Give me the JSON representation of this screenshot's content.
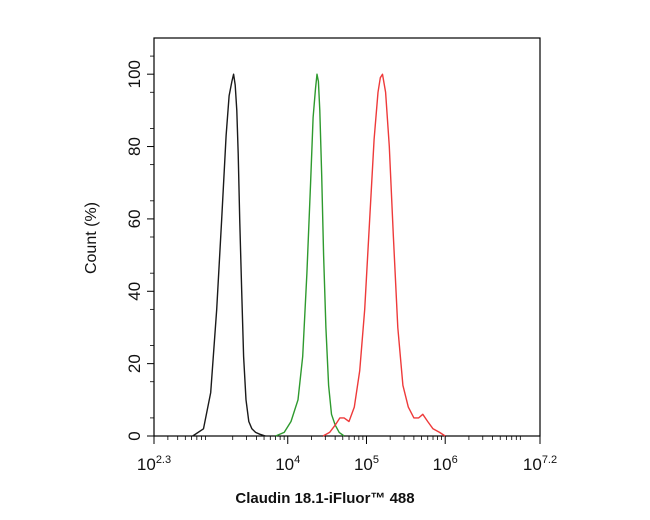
{
  "chart_data": {
    "type": "line",
    "title": "",
    "xlabel": "Claudin 18.1-iFluor™ 488",
    "ylabel": "Count (%)",
    "xscale": "log",
    "xlim": [
      200,
      16000000
    ],
    "ylim": [
      0,
      110
    ],
    "grid": false,
    "legend": "none",
    "x_ticks": [
      {
        "base": "10",
        "exp": "2.3",
        "value": 200
      },
      {
        "base": "10",
        "exp": "4",
        "value": 10000
      },
      {
        "base": "10",
        "exp": "5",
        "value": 100000
      },
      {
        "base": "10",
        "exp": "6",
        "value": 1000000
      },
      {
        "base": "10",
        "exp": "7.2",
        "value": 16000000
      }
    ],
    "y_ticks": [
      "0",
      "20",
      "40",
      "60",
      "80",
      "100"
    ],
    "series": [
      {
        "color": "#1a1a1a",
        "x": [
          620,
          850,
          1050,
          1250,
          1450,
          1650,
          1800,
          1950,
          2050,
          2150,
          2250,
          2350,
          2450,
          2600,
          2750,
          2950,
          3200,
          3500,
          3900,
          4400,
          5200
        ],
        "y": [
          0,
          2,
          12,
          35,
          60,
          83,
          94,
          98,
          100,
          97,
          90,
          78,
          60,
          40,
          22,
          10,
          4,
          2,
          1,
          0.5,
          0
        ]
      },
      {
        "color": "#2e9a2e",
        "x": [
          7000,
          9000,
          11000,
          13500,
          15500,
          17500,
          19500,
          21000,
          22500,
          23500,
          24500,
          25500,
          27000,
          28500,
          30500,
          33000,
          36000,
          40000,
          45000,
          52000
        ],
        "y": [
          0,
          1,
          4,
          10,
          22,
          45,
          70,
          88,
          96,
          100,
          98,
          90,
          72,
          50,
          30,
          14,
          6,
          3,
          1,
          0
        ]
      },
      {
        "color": "#ee3a3a",
        "x": [
          28000,
          34000,
          40000,
          46000,
          52000,
          60000,
          70000,
          82000,
          95000,
          110000,
          125000,
          140000,
          150000,
          160000,
          175000,
          195000,
          220000,
          250000,
          290000,
          340000,
          400000,
          460000,
          520000,
          600000,
          700000,
          850000,
          1000000
        ],
        "y": [
          0,
          1,
          3,
          5,
          5,
          4,
          8,
          18,
          35,
          60,
          82,
          95,
          99,
          100,
          95,
          80,
          55,
          30,
          14,
          8,
          5,
          5,
          6,
          4,
          2,
          1,
          0
        ]
      }
    ]
  }
}
